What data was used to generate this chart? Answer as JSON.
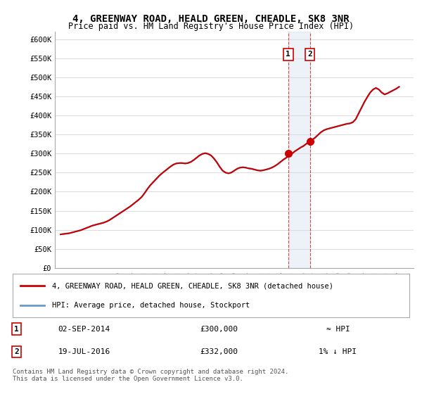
{
  "title": "4, GREENWAY ROAD, HEALD GREEN, CHEADLE, SK8 3NR",
  "subtitle": "Price paid vs. HM Land Registry's House Price Index (HPI)",
  "legend_line1": "4, GREENWAY ROAD, HEALD GREEN, CHEADLE, SK8 3NR (detached house)",
  "legend_line2": "HPI: Average price, detached house, Stockport",
  "footer": "Contains HM Land Registry data © Crown copyright and database right 2024.\nThis data is licensed under the Open Government Licence v3.0.",
  "annotation1_label": "1",
  "annotation1_date": "02-SEP-2014",
  "annotation1_price": "£300,000",
  "annotation1_hpi": "≈ HPI",
  "annotation2_label": "2",
  "annotation2_date": "19-JUL-2016",
  "annotation2_price": "£332,000",
  "annotation2_hpi": "1% ↓ HPI",
  "sale1_x": 2014.67,
  "sale1_y": 300000,
  "sale2_x": 2016.54,
  "sale2_y": 332000,
  "hpi_color": "#6699cc",
  "price_color": "#cc0000",
  "background_color": "#ffffff",
  "plot_bg_color": "#ffffff",
  "grid_color": "#dddddd",
  "ylim": [
    0,
    620000
  ],
  "xlim": [
    1994.5,
    2025.5
  ],
  "hpi_data_x": [
    1995,
    1995.25,
    1995.5,
    1995.75,
    1996,
    1996.25,
    1996.5,
    1996.75,
    1997,
    1997.25,
    1997.5,
    1997.75,
    1998,
    1998.25,
    1998.5,
    1998.75,
    1999,
    1999.25,
    1999.5,
    1999.75,
    2000,
    2000.25,
    2000.5,
    2000.75,
    2001,
    2001.25,
    2001.5,
    2001.75,
    2002,
    2002.25,
    2002.5,
    2002.75,
    2003,
    2003.25,
    2003.5,
    2003.75,
    2004,
    2004.25,
    2004.5,
    2004.75,
    2005,
    2005.25,
    2005.5,
    2005.75,
    2006,
    2006.25,
    2006.5,
    2006.75,
    2007,
    2007.25,
    2007.5,
    2007.75,
    2008,
    2008.25,
    2008.5,
    2008.75,
    2009,
    2009.25,
    2009.5,
    2009.75,
    2010,
    2010.25,
    2010.5,
    2010.75,
    2011,
    2011.25,
    2011.5,
    2011.75,
    2012,
    2012.25,
    2012.5,
    2012.75,
    2013,
    2013.25,
    2013.5,
    2013.75,
    2014,
    2014.25,
    2014.5,
    2014.75,
    2015,
    2015.25,
    2015.5,
    2015.75,
    2016,
    2016.25,
    2016.5,
    2016.75,
    2017,
    2017.25,
    2017.5,
    2017.75,
    2018,
    2018.25,
    2018.5,
    2018.75,
    2019,
    2019.25,
    2019.5,
    2019.75,
    2020,
    2020.25,
    2020.5,
    2020.75,
    2021,
    2021.25,
    2021.5,
    2021.75,
    2022,
    2022.25,
    2022.5,
    2022.75,
    2023,
    2023.25,
    2023.5,
    2023.75,
    2024,
    2024.25
  ],
  "hpi_data_y": [
    88000,
    89000,
    90000,
    91000,
    93000,
    95000,
    97000,
    99000,
    102000,
    105000,
    108000,
    111000,
    113000,
    115000,
    117000,
    119000,
    122000,
    126000,
    131000,
    136000,
    141000,
    146000,
    151000,
    156000,
    161000,
    167000,
    173000,
    179000,
    186000,
    196000,
    207000,
    217000,
    225000,
    233000,
    241000,
    248000,
    254000,
    260000,
    266000,
    271000,
    274000,
    275000,
    275000,
    274000,
    275000,
    278000,
    283000,
    289000,
    295000,
    299000,
    301000,
    299000,
    295000,
    287000,
    277000,
    265000,
    255000,
    250000,
    248000,
    250000,
    255000,
    260000,
    263000,
    264000,
    263000,
    261000,
    260000,
    258000,
    256000,
    255000,
    256000,
    258000,
    260000,
    263000,
    267000,
    272000,
    278000,
    284000,
    289000,
    295000,
    300000,
    306000,
    311000,
    316000,
    320000,
    326000,
    332000,
    336000,
    342000,
    349000,
    356000,
    361000,
    364000,
    366000,
    368000,
    370000,
    372000,
    374000,
    376000,
    378000,
    379000,
    382000,
    390000,
    405000,
    420000,
    435000,
    448000,
    460000,
    468000,
    472000,
    468000,
    460000,
    455000,
    458000,
    462000,
    466000,
    470000,
    475000
  ],
  "yticks": [
    0,
    50000,
    100000,
    150000,
    200000,
    250000,
    300000,
    350000,
    400000,
    450000,
    500000,
    550000,
    600000
  ],
  "ytick_labels": [
    "£0",
    "£50K",
    "£100K",
    "£150K",
    "£200K",
    "£250K",
    "£300K",
    "£350K",
    "£400K",
    "£450K",
    "£500K",
    "£550K",
    "£600K"
  ],
  "xtick_years": [
    1995,
    1996,
    1997,
    1998,
    1999,
    2000,
    2001,
    2002,
    2003,
    2004,
    2005,
    2006,
    2007,
    2008,
    2009,
    2010,
    2011,
    2012,
    2013,
    2014,
    2015,
    2016,
    2017,
    2018,
    2019,
    2020,
    2021,
    2022,
    2023,
    2024,
    2025
  ]
}
